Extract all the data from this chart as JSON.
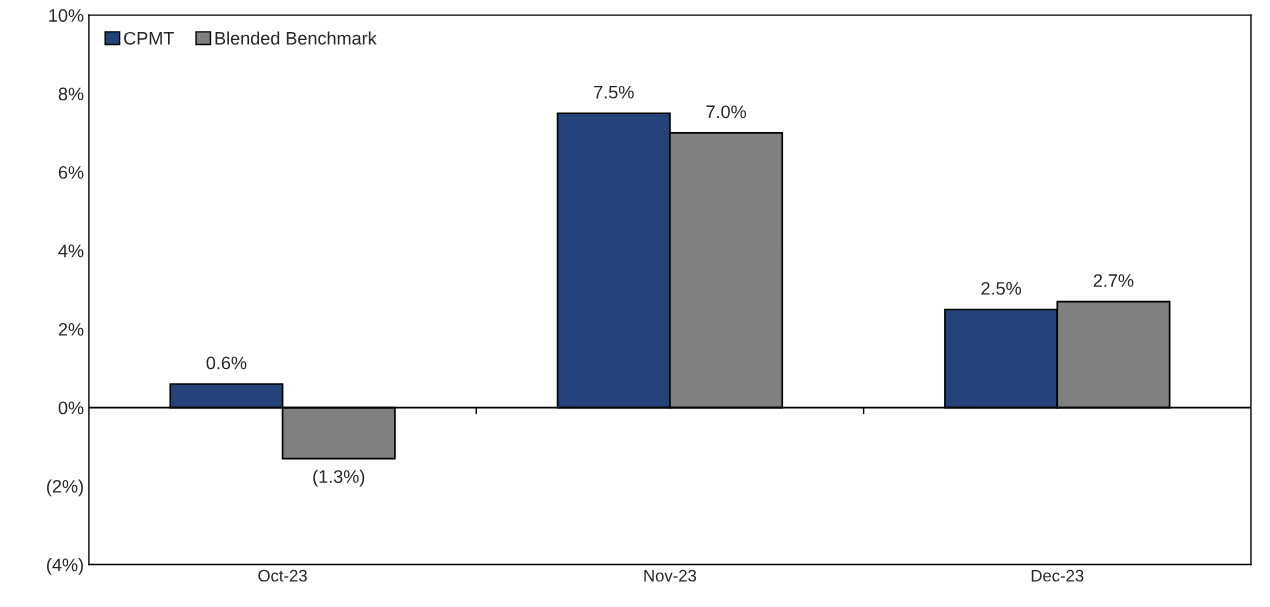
{
  "chart_data": {
    "type": "bar",
    "categories": [
      "Oct-23",
      "Nov-23",
      "Dec-23"
    ],
    "series": [
      {
        "name": "CPMT",
        "color": "#25437b",
        "values": [
          0.6,
          7.5,
          2.5
        ],
        "value_labels": [
          "0.6%",
          "7.5%",
          "2.5%"
        ]
      },
      {
        "name": "Blended Benchmark",
        "color": "#808080",
        "values": [
          -1.3,
          7.0,
          2.7
        ],
        "value_labels": [
          "(1.3%)",
          "7.0%",
          "2.7%"
        ]
      }
    ],
    "ylim": [
      -4,
      10
    ],
    "yticks": [
      {
        "value": -4,
        "label": "(4%)"
      },
      {
        "value": -2,
        "label": "(2%)"
      },
      {
        "value": 0,
        "label": "0%"
      },
      {
        "value": 2,
        "label": "2%"
      },
      {
        "value": 4,
        "label": "4%"
      },
      {
        "value": 6,
        "label": "6%"
      },
      {
        "value": 8,
        "label": "8%"
      },
      {
        "value": 10,
        "label": "10%"
      }
    ],
    "ref_lines": [
      {
        "axis": "y",
        "value": 0,
        "color": "#000000"
      }
    ],
    "grid": false,
    "legend": "top left"
  }
}
